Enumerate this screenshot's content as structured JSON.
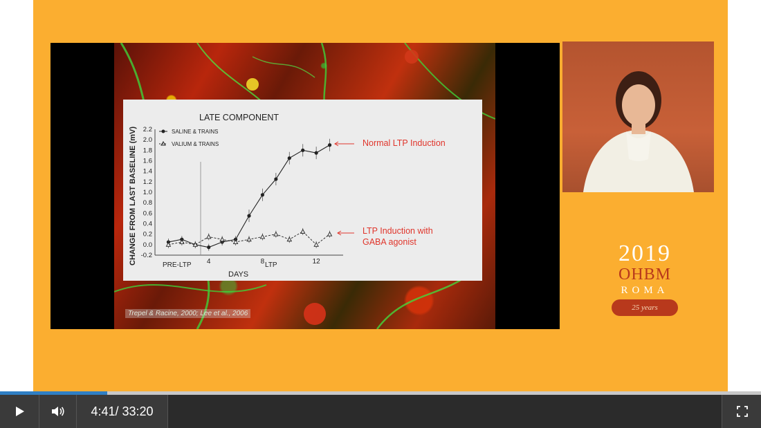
{
  "slide": {
    "chart_title": "LATE COMPONENT",
    "ylabel": "CHANGE FROM LAST BASELINE (mV)",
    "xlabel": "DAYS",
    "ticks_y": [
      "2.2",
      "2.0",
      "1.8",
      "1.6",
      "1.4",
      "1.2",
      "1.0",
      "0.8",
      "0.6",
      "0.4",
      "0.2",
      "0.0",
      "-0.2"
    ],
    "ticks_x": [
      "4",
      "8",
      "12"
    ],
    "region_pre": "PRE-LTP",
    "region_ltp": "LTP",
    "legend_saline": "SALINE & TRAINS",
    "legend_valium": "VALIUM & TRAINS",
    "annotation_normal": "Normal LTP Induction",
    "annotation_gaba_1": "LTP Induction with",
    "annotation_gaba_2": "GABA agonist",
    "citation": "Trepel & Racine, 2000; Lee et al., 2006"
  },
  "chart_data": {
    "type": "line",
    "title": "LATE COMPONENT",
    "xlabel": "DAYS",
    "ylabel": "CHANGE FROM LAST BASELINE (mV)",
    "ylim": [
      -0.2,
      2.2
    ],
    "x": [
      1,
      2,
      3,
      4,
      5,
      6,
      7,
      8,
      9,
      10,
      11,
      12,
      13
    ],
    "series": [
      {
        "name": "SALINE & TRAINS",
        "values": [
          0.05,
          0.1,
          0.0,
          -0.05,
          0.05,
          0.1,
          0.55,
          0.95,
          1.25,
          1.65,
          1.8,
          1.75,
          1.9
        ]
      },
      {
        "name": "VALIUM & TRAINS",
        "values": [
          0.0,
          0.05,
          0.0,
          0.15,
          0.1,
          0.05,
          0.1,
          0.15,
          0.2,
          0.1,
          0.25,
          0.0,
          0.2
        ]
      }
    ]
  },
  "logo": {
    "year": "2019",
    "org": "OHBM",
    "city": "ROMA",
    "ribbon": "25 years"
  },
  "player": {
    "current_time": "4:41",
    "separator": "/ ",
    "duration": "33:20",
    "progress": 0.1405,
    "accent": "#2f7fc4"
  }
}
